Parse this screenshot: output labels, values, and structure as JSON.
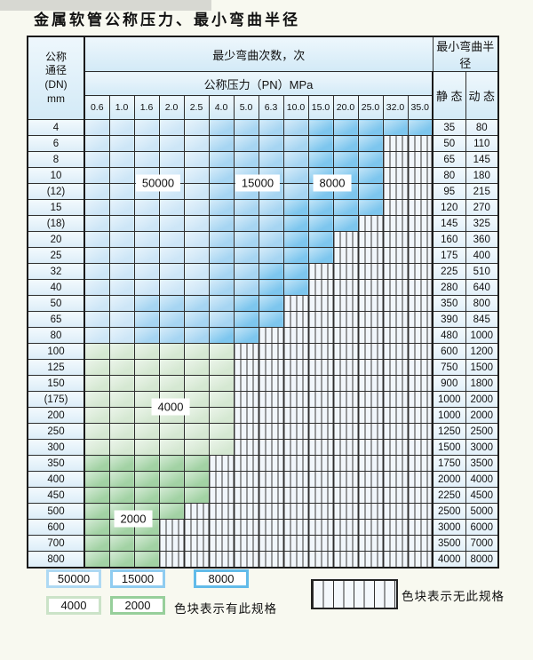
{
  "title": "金属软管公称压力、最小弯曲半径",
  "table": {
    "header": {
      "dn_label_lines": [
        "公称",
        "通径",
        "(DN)",
        "mm"
      ],
      "cycles_label": "最少弯曲次数，次",
      "pressure_label": "公称压力（PN）MPa",
      "pressure_columns": [
        "0.6",
        "1.0",
        "1.6",
        "2.0",
        "2.5",
        "4.0",
        "5.0",
        "6.3",
        "10.0",
        "15.0",
        "20.0",
        "25.0",
        "32.0",
        "35.0"
      ],
      "radius_label": "最小弯曲半径",
      "static_label": "静 态",
      "dynamic_label": "动 态"
    },
    "rows": [
      {
        "dn": "4",
        "cells": [
          "b1",
          "b1",
          "b1",
          "b1",
          "b1",
          "b2",
          "b2",
          "b2",
          "b2",
          "b3",
          "b3",
          "b3",
          "b3",
          "b3"
        ],
        "static": "35",
        "dynamic": "80"
      },
      {
        "dn": "6",
        "cells": [
          "b1",
          "b1",
          "b1",
          "b1",
          "b1",
          "b2",
          "b2",
          "b2",
          "b2",
          "b3",
          "b3",
          "b3",
          "h",
          "h"
        ],
        "static": "50",
        "dynamic": "110"
      },
      {
        "dn": "8",
        "cells": [
          "b1",
          "b1",
          "b1",
          "b1",
          "b1",
          "b2",
          "b2",
          "b2",
          "b2",
          "b3",
          "b3",
          "b3",
          "h",
          "h"
        ],
        "static": "65",
        "dynamic": "145"
      },
      {
        "dn": "10",
        "cells": [
          "b1",
          "b1",
          "b1",
          "b1",
          "b1",
          "b2",
          "b2",
          "b2",
          "b2",
          "b3",
          "b3",
          "b3",
          "h",
          "h"
        ],
        "static": "80",
        "dynamic": "180"
      },
      {
        "dn": "(12)",
        "cells": [
          "b1",
          "b1",
          "b1",
          "b1",
          "b1",
          "b2",
          "b2",
          "b2",
          "b2",
          "b3",
          "b3",
          "b3",
          "h",
          "h"
        ],
        "static": "95",
        "dynamic": "215"
      },
      {
        "dn": "15",
        "cells": [
          "b1",
          "b1",
          "b1",
          "b1",
          "b1",
          "b2",
          "b2",
          "b2",
          "b3",
          "b3",
          "b3",
          "b3",
          "h",
          "h"
        ],
        "static": "120",
        "dynamic": "270"
      },
      {
        "dn": "(18)",
        "cells": [
          "b1",
          "b1",
          "b1",
          "b1",
          "b1",
          "b2",
          "b2",
          "b2",
          "b3",
          "b3",
          "b3",
          "h",
          "h",
          "h"
        ],
        "static": "145",
        "dynamic": "325"
      },
      {
        "dn": "20",
        "cells": [
          "b1",
          "b1",
          "b1",
          "b1",
          "b1",
          "b2",
          "b2",
          "b2",
          "b3",
          "b3",
          "h",
          "h",
          "h",
          "h"
        ],
        "static": "160",
        "dynamic": "360"
      },
      {
        "dn": "25",
        "cells": [
          "b1",
          "b1",
          "b1",
          "b1",
          "b1",
          "b2",
          "b2",
          "b2",
          "b3",
          "b3",
          "h",
          "h",
          "h",
          "h"
        ],
        "static": "175",
        "dynamic": "400"
      },
      {
        "dn": "32",
        "cells": [
          "b1",
          "b1",
          "b1",
          "b1",
          "b1",
          "b2",
          "b2",
          "b3",
          "b3",
          "h",
          "h",
          "h",
          "h",
          "h"
        ],
        "static": "225",
        "dynamic": "510"
      },
      {
        "dn": "40",
        "cells": [
          "b1",
          "b1",
          "b1",
          "b1",
          "b1",
          "b2",
          "b2",
          "b3",
          "b3",
          "h",
          "h",
          "h",
          "h",
          "h"
        ],
        "static": "280",
        "dynamic": "640"
      },
      {
        "dn": "50",
        "cells": [
          "b1",
          "b1",
          "b2",
          "b2",
          "b2",
          "b2",
          "b3",
          "b3",
          "h",
          "h",
          "h",
          "h",
          "h",
          "h"
        ],
        "static": "350",
        "dynamic": "800"
      },
      {
        "dn": "65",
        "cells": [
          "b1",
          "b1",
          "b2",
          "b2",
          "b2",
          "b2",
          "b3",
          "b3",
          "h",
          "h",
          "h",
          "h",
          "h",
          "h"
        ],
        "static": "390",
        "dynamic": "845"
      },
      {
        "dn": "80",
        "cells": [
          "b1",
          "b1",
          "b2",
          "b2",
          "b2",
          "b3",
          "b3",
          "h",
          "h",
          "h",
          "h",
          "h",
          "h",
          "h"
        ],
        "static": "480",
        "dynamic": "1000"
      },
      {
        "dn": "100",
        "cells": [
          "g1",
          "g1",
          "g1",
          "g1",
          "g1",
          "g1",
          "h",
          "h",
          "h",
          "h",
          "h",
          "h",
          "h",
          "h"
        ],
        "static": "600",
        "dynamic": "1200"
      },
      {
        "dn": "125",
        "cells": [
          "g1",
          "g1",
          "g1",
          "g1",
          "g1",
          "g1",
          "h",
          "h",
          "h",
          "h",
          "h",
          "h",
          "h",
          "h"
        ],
        "static": "750",
        "dynamic": "1500"
      },
      {
        "dn": "150",
        "cells": [
          "g1",
          "g1",
          "g1",
          "g1",
          "g1",
          "g1",
          "h",
          "h",
          "h",
          "h",
          "h",
          "h",
          "h",
          "h"
        ],
        "static": "900",
        "dynamic": "1800"
      },
      {
        "dn": "(175)",
        "cells": [
          "g1",
          "g1",
          "g1",
          "g1",
          "g1",
          "g1",
          "h",
          "h",
          "h",
          "h",
          "h",
          "h",
          "h",
          "h"
        ],
        "static": "1000",
        "dynamic": "2000"
      },
      {
        "dn": "200",
        "cells": [
          "g1",
          "g1",
          "g1",
          "g1",
          "g1",
          "g1",
          "h",
          "h",
          "h",
          "h",
          "h",
          "h",
          "h",
          "h"
        ],
        "static": "1000",
        "dynamic": "2000"
      },
      {
        "dn": "250",
        "cells": [
          "g1",
          "g1",
          "g1",
          "g1",
          "g1",
          "g1",
          "h",
          "h",
          "h",
          "h",
          "h",
          "h",
          "h",
          "h"
        ],
        "static": "1250",
        "dynamic": "2500"
      },
      {
        "dn": "300",
        "cells": [
          "g1",
          "g1",
          "g1",
          "g1",
          "g1",
          "g1",
          "h",
          "h",
          "h",
          "h",
          "h",
          "h",
          "h",
          "h"
        ],
        "static": "1500",
        "dynamic": "3000"
      },
      {
        "dn": "350",
        "cells": [
          "g2",
          "g2",
          "g2",
          "g2",
          "g2",
          "h",
          "h",
          "h",
          "h",
          "h",
          "h",
          "h",
          "h",
          "h"
        ],
        "static": "1750",
        "dynamic": "3500"
      },
      {
        "dn": "400",
        "cells": [
          "g2",
          "g2",
          "g2",
          "g2",
          "g2",
          "h",
          "h",
          "h",
          "h",
          "h",
          "h",
          "h",
          "h",
          "h"
        ],
        "static": "2000",
        "dynamic": "4000"
      },
      {
        "dn": "450",
        "cells": [
          "g2",
          "g2",
          "g2",
          "g2",
          "g2",
          "h",
          "h",
          "h",
          "h",
          "h",
          "h",
          "h",
          "h",
          "h"
        ],
        "static": "2250",
        "dynamic": "4500"
      },
      {
        "dn": "500",
        "cells": [
          "g2",
          "g2",
          "g2",
          "g2",
          "h",
          "h",
          "h",
          "h",
          "h",
          "h",
          "h",
          "h",
          "h",
          "h"
        ],
        "static": "2500",
        "dynamic": "5000"
      },
      {
        "dn": "600",
        "cells": [
          "g2",
          "g2",
          "g2",
          "h",
          "h",
          "h",
          "h",
          "h",
          "h",
          "h",
          "h",
          "h",
          "h",
          "h"
        ],
        "static": "3000",
        "dynamic": "6000"
      },
      {
        "dn": "700",
        "cells": [
          "g2",
          "g2",
          "g2",
          "h",
          "h",
          "h",
          "h",
          "h",
          "h",
          "h",
          "h",
          "h",
          "h",
          "h"
        ],
        "static": "3500",
        "dynamic": "7000"
      },
      {
        "dn": "800",
        "cells": [
          "g2",
          "g2",
          "g2",
          "h",
          "h",
          "h",
          "h",
          "h",
          "h",
          "h",
          "h",
          "h",
          "h",
          "h"
        ],
        "static": "4000",
        "dynamic": "8000"
      }
    ]
  },
  "cell_legend": {
    "b1": "50000",
    "b2": "15000",
    "b3": "8000",
    "g1": "4000",
    "g2": "2000",
    "h": "no-spec"
  },
  "palette": {
    "b1": "#cde6f7",
    "b2": "#a6d5f2",
    "b3": "#7dc6ee",
    "g1": "#d5e8d2",
    "g2": "#a2d2a4"
  },
  "zone_labels": [
    {
      "text": "50000",
      "rows": [
        3,
        4
      ],
      "cols": [
        2,
        3
      ]
    },
    {
      "text": "15000",
      "rows": [
        3,
        4
      ],
      "cols": [
        6,
        7
      ]
    },
    {
      "text": "8000",
      "rows": [
        3,
        4
      ],
      "cols": [
        9,
        10
      ]
    },
    {
      "text": "4000",
      "rows": [
        17,
        18
      ],
      "cols": [
        2,
        4
      ]
    },
    {
      "text": "2000",
      "rows": [
        24,
        25
      ],
      "cols": [
        1,
        2
      ]
    }
  ],
  "legend": {
    "swatches": [
      {
        "label": "50000",
        "color": "#aed9f3"
      },
      {
        "label": "15000",
        "color": "#8fccf0"
      },
      {
        "label": "8000",
        "color": "#62bbe9"
      },
      {
        "label": "4000",
        "color": "#cbe3c8"
      },
      {
        "label": "2000",
        "color": "#97cf9b"
      }
    ],
    "available_label": "色块表示有此规格",
    "unavailable_label": "色块表示无此规格"
  }
}
